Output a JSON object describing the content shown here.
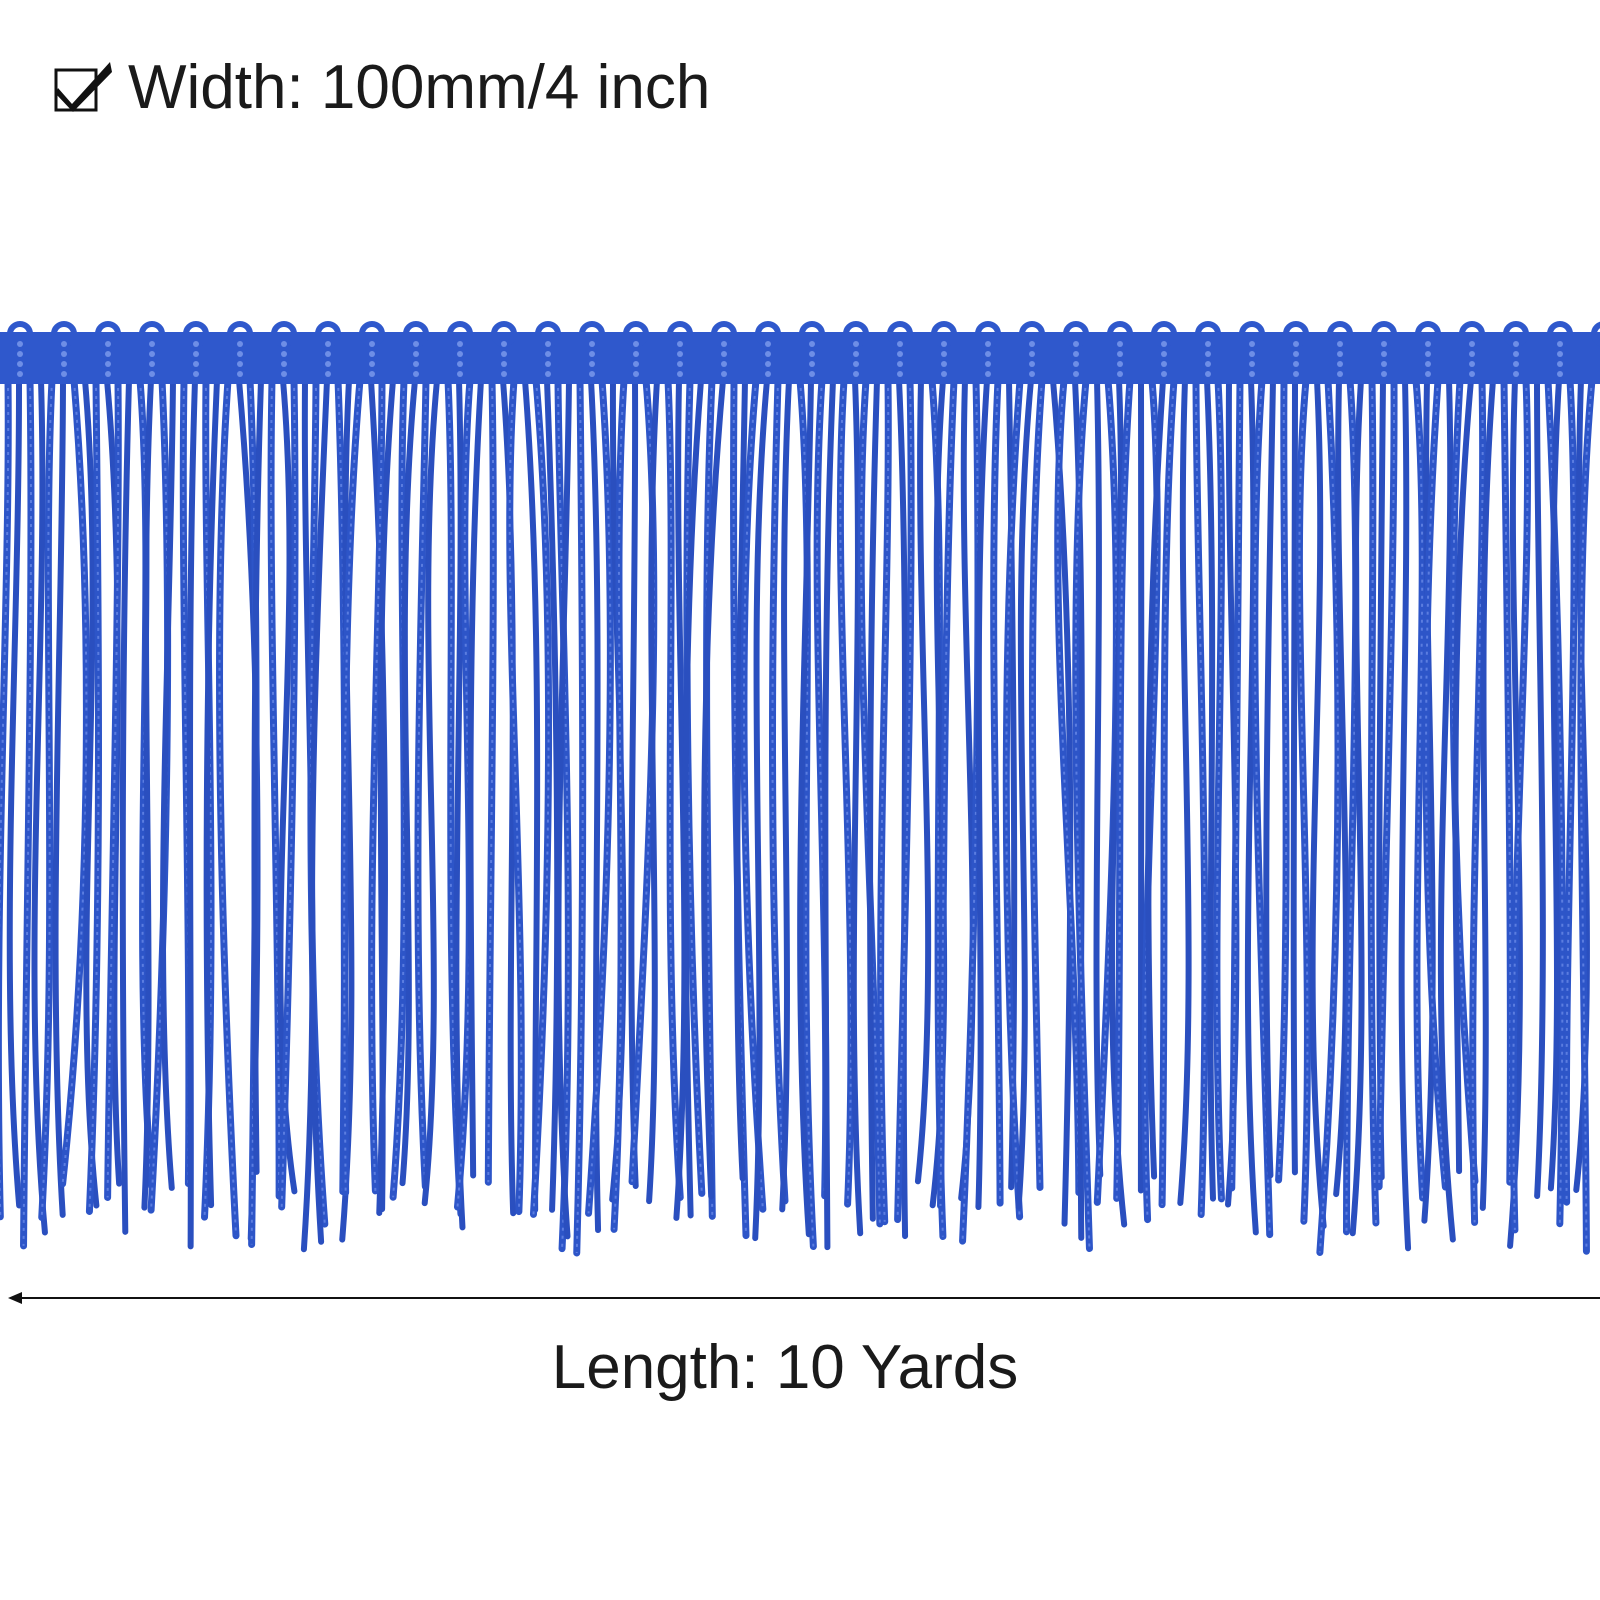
{
  "width_label": "Width: 100mm/4 inch",
  "length_label": "Length: 10 Yards"
}
